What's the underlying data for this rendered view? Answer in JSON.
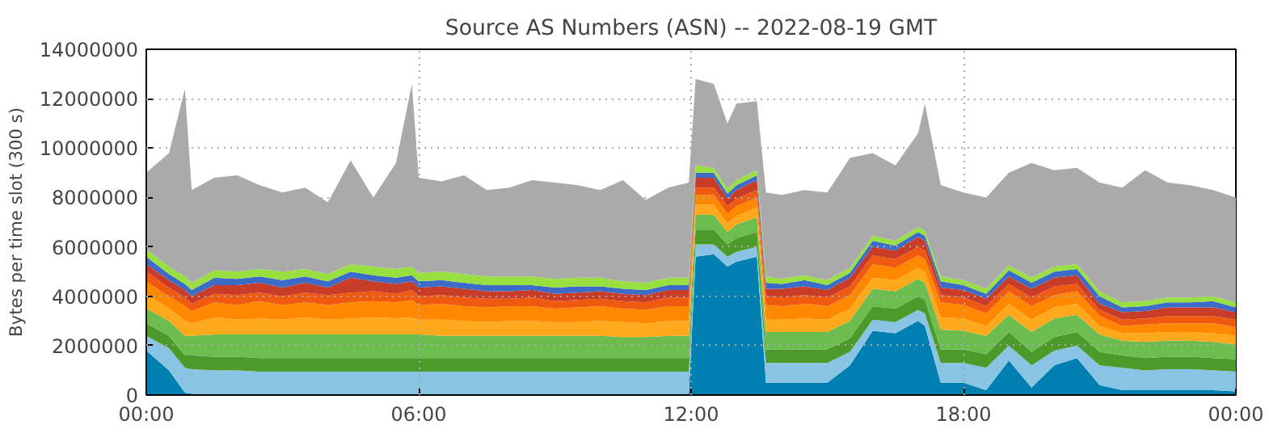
{
  "chart_data": {
    "type": "area",
    "stacked": true,
    "title": "Source AS Numbers (ASN) -- 2022-08-19 GMT",
    "ylabel": "Bytes per time slot (300 s)",
    "x": [
      0,
      0.5,
      0.85,
      1,
      1.5,
      2,
      2.5,
      3,
      3.5,
      4,
      4.5,
      5,
      5.5,
      5.85,
      6,
      6.5,
      7,
      7.5,
      8,
      8.5,
      9,
      9.5,
      10,
      10.5,
      11,
      11.5,
      11.95,
      12.1,
      12.5,
      12.8,
      13,
      13.45,
      13.65,
      14,
      14.5,
      15,
      15.5,
      16,
      16.5,
      17,
      17.15,
      17.5,
      18,
      18.5,
      19,
      19.5,
      20,
      20.5,
      21,
      21.5,
      22,
      22.5,
      23,
      23.5,
      24
    ],
    "xlim": [
      0,
      24
    ],
    "xticks": [
      {
        "value": 0,
        "label": "00:00"
      },
      {
        "value": 6,
        "label": "06:00"
      },
      {
        "value": 12,
        "label": "12:00"
      },
      {
        "value": 18,
        "label": "18:00"
      },
      {
        "value": 24,
        "label": "00:00"
      }
    ],
    "ylim": [
      0,
      14000000
    ],
    "yticks": [
      0,
      2000000,
      4000000,
      6000000,
      8000000,
      10000000,
      12000000,
      14000000
    ],
    "grid": true,
    "series": [
      {
        "color": "#0080b0",
        "values": [
          1800000,
          1000000,
          100000,
          50000,
          50000,
          50000,
          50000,
          50000,
          50000,
          50000,
          50000,
          50000,
          50000,
          50000,
          50000,
          50000,
          50000,
          50000,
          50000,
          50000,
          50000,
          50000,
          50000,
          50000,
          50000,
          50000,
          50000,
          5600000,
          5700000,
          5200000,
          5400000,
          5600000,
          500000,
          500000,
          500000,
          500000,
          1200000,
          2600000,
          2500000,
          3000000,
          2800000,
          500000,
          500000,
          200000,
          1400000,
          300000,
          1200000,
          1500000,
          400000,
          200000,
          200000,
          200000,
          200000,
          200000,
          150000
        ]
      },
      {
        "color": "#8ac4e4",
        "values": [
          600000,
          900000,
          1000000,
          1000000,
          950000,
          950000,
          900000,
          900000,
          900000,
          900000,
          900000,
          900000,
          900000,
          900000,
          900000,
          900000,
          900000,
          900000,
          900000,
          900000,
          900000,
          900000,
          900000,
          900000,
          900000,
          900000,
          900000,
          500000,
          400000,
          400000,
          400000,
          400000,
          800000,
          800000,
          800000,
          800000,
          550000,
          450000,
          450000,
          450000,
          500000,
          800000,
          800000,
          900000,
          600000,
          900000,
          600000,
          500000,
          800000,
          900000,
          800000,
          850000,
          850000,
          800000,
          800000
        ]
      },
      {
        "color": "#4c9a2a",
        "values": [
          500000,
          500000,
          500000,
          550000,
          550000,
          550000,
          550000,
          550000,
          550000,
          550000,
          550000,
          550000,
          550000,
          550000,
          550000,
          550000,
          550000,
          550000,
          550000,
          550000,
          550000,
          550000,
          550000,
          550000,
          550000,
          550000,
          550000,
          600000,
          600000,
          500000,
          550000,
          600000,
          550000,
          550000,
          550000,
          550000,
          550000,
          550000,
          550000,
          550000,
          550000,
          550000,
          550000,
          550000,
          550000,
          550000,
          550000,
          550000,
          550000,
          500000,
          500000,
          500000,
          500000,
          500000,
          500000
        ]
      },
      {
        "color": "#6cbc50",
        "values": [
          600000,
          600000,
          800000,
          800000,
          900000,
          900000,
          950000,
          950000,
          950000,
          950000,
          950000,
          950000,
          950000,
          950000,
          950000,
          900000,
          900000,
          900000,
          900000,
          900000,
          900000,
          900000,
          900000,
          850000,
          850000,
          900000,
          900000,
          600000,
          600000,
          500000,
          550000,
          600000,
          700000,
          700000,
          700000,
          700000,
          700000,
          700000,
          700000,
          700000,
          700000,
          800000,
          750000,
          750000,
          700000,
          800000,
          750000,
          700000,
          700000,
          600000,
          650000,
          650000,
          650000,
          650000,
          600000
        ]
      },
      {
        "color": "#ffa81c",
        "values": [
          600000,
          500000,
          600000,
          500000,
          700000,
          600000,
          650000,
          600000,
          700000,
          600000,
          650000,
          700000,
          650000,
          700000,
          600000,
          650000,
          600000,
          550000,
          600000,
          600000,
          550000,
          550000,
          600000,
          600000,
          550000,
          600000,
          600000,
          400000,
          400000,
          350000,
          350000,
          400000,
          500000,
          500000,
          550000,
          500000,
          500000,
          450000,
          450000,
          450000,
          450000,
          500000,
          500000,
          400000,
          450000,
          500000,
          450000,
          450000,
          350000,
          300000,
          350000,
          350000,
          350000,
          350000,
          350000
        ]
      },
      {
        "color": "#ff8800",
        "values": [
          500000,
          500000,
          600000,
          500000,
          600000,
          600000,
          700000,
          600000,
          600000,
          600000,
          650000,
          650000,
          650000,
          700000,
          600000,
          650000,
          600000,
          600000,
          600000,
          600000,
          550000,
          600000,
          600000,
          550000,
          550000,
          600000,
          600000,
          400000,
          400000,
          400000,
          400000,
          400000,
          600000,
          550000,
          600000,
          550000,
          550000,
          550000,
          500000,
          500000,
          500000,
          600000,
          550000,
          500000,
          500000,
          550000,
          500000,
          500000,
          400000,
          300000,
          350000,
          350000,
          350000,
          400000,
          350000
        ]
      },
      {
        "color": "#f05a10",
        "values": [
          400000,
          350000,
          350000,
          300000,
          350000,
          400000,
          350000,
          350000,
          400000,
          400000,
          400000,
          400000,
          350000,
          400000,
          350000,
          350000,
          350000,
          350000,
          300000,
          350000,
          300000,
          300000,
          300000,
          300000,
          300000,
          350000,
          350000,
          300000,
          300000,
          300000,
          300000,
          300000,
          350000,
          350000,
          350000,
          350000,
          350000,
          350000,
          350000,
          350000,
          350000,
          300000,
          300000,
          300000,
          300000,
          350000,
          350000,
          300000,
          250000,
          250000,
          250000,
          300000,
          300000,
          300000,
          300000
        ]
      },
      {
        "color": "#c83c28",
        "values": [
          300000,
          300000,
          300000,
          300000,
          350000,
          400000,
          400000,
          350000,
          400000,
          300000,
          600000,
          400000,
          400000,
          350000,
          350000,
          350000,
          350000,
          300000,
          300000,
          300000,
          300000,
          300000,
          300000,
          300000,
          300000,
          300000,
          300000,
          400000,
          400000,
          300000,
          350000,
          400000,
          300000,
          350000,
          350000,
          300000,
          350000,
          350000,
          350000,
          400000,
          400000,
          300000,
          300000,
          300000,
          300000,
          350000,
          350000,
          350000,
          250000,
          300000,
          300000,
          350000,
          350000,
          350000,
          300000
        ]
      },
      {
        "color": "#3c6cc8",
        "values": [
          300000,
          250000,
          250000,
          250000,
          300000,
          250000,
          250000,
          300000,
          250000,
          250000,
          250000,
          250000,
          250000,
          250000,
          250000,
          250000,
          250000,
          250000,
          250000,
          200000,
          250000,
          250000,
          200000,
          200000,
          200000,
          200000,
          200000,
          200000,
          200000,
          200000,
          200000,
          200000,
          250000,
          200000,
          250000,
          200000,
          200000,
          250000,
          200000,
          200000,
          200000,
          250000,
          200000,
          200000,
          250000,
          250000,
          250000,
          250000,
          300000,
          200000,
          200000,
          200000,
          200000,
          250000,
          200000
        ]
      },
      {
        "color": "#98e040",
        "values": [
          300000,
          300000,
          300000,
          300000,
          300000,
          300000,
          300000,
          350000,
          300000,
          300000,
          300000,
          350000,
          350000,
          350000,
          350000,
          350000,
          350000,
          350000,
          350000,
          350000,
          350000,
          350000,
          350000,
          300000,
          300000,
          300000,
          300000,
          300000,
          200000,
          200000,
          200000,
          200000,
          250000,
          200000,
          200000,
          200000,
          200000,
          200000,
          200000,
          200000,
          200000,
          200000,
          200000,
          200000,
          200000,
          200000,
          200000,
          200000,
          200000,
          200000,
          200000,
          200000,
          200000,
          200000,
          200000
        ]
      },
      {
        "color": "#aaaaaa",
        "values": [
          3100000,
          4600000,
          7600000,
          3750000,
          3750000,
          3900000,
          3400000,
          3200000,
          3300000,
          2900000,
          4200000,
          2800000,
          4300000,
          7400000,
          3850000,
          3650000,
          4000000,
          3500000,
          3600000,
          3900000,
          3900000,
          3750000,
          3550000,
          4100000,
          3350000,
          3650000,
          3850000,
          3500000,
          3400000,
          2650000,
          3100000,
          2800000,
          3400000,
          3400000,
          3450000,
          3550000,
          4450000,
          3350000,
          3050000,
          3800000,
          5150000,
          3700000,
          3550000,
          3700000,
          3750000,
          4650000,
          3900000,
          3900000,
          4400000,
          4650000,
          5300000,
          4650000,
          4550000,
          4300000,
          4250000
        ]
      }
    ]
  }
}
